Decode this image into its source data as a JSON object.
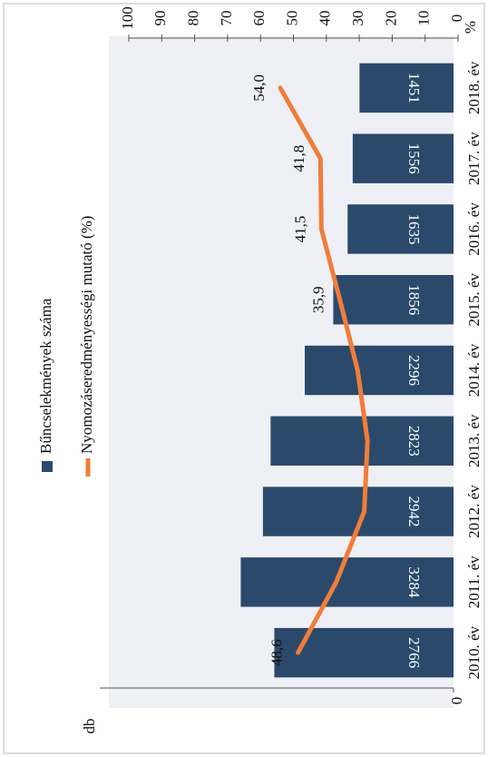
{
  "chart_data": {
    "type": "bar",
    "categories": [
      "2010. év",
      "2011. év",
      "2012. év",
      "2013. év",
      "2014. év",
      "2015. év",
      "2016. év",
      "2017. év",
      "2018. év"
    ],
    "series": [
      {
        "name": "Bűncselekmények száma",
        "type": "bar",
        "color": "#2b4a6b",
        "values": [
          2766,
          3284,
          2942,
          2823,
          2296,
          1856,
          1635,
          1556,
          1451
        ]
      },
      {
        "name": "Nyomozáseredményességi mutató (%)",
        "type": "line",
        "axis": "y2",
        "color": "#f07d3a",
        "values": [
          48.6,
          37,
          28.5,
          27.5,
          30.5,
          35.9,
          41.5,
          41.8,
          54.0
        ],
        "value_labels": [
          "48,6",
          null,
          null,
          null,
          null,
          "35,9",
          "41,5",
          "41,8",
          "54,0"
        ]
      }
    ],
    "ylabel": "db",
    "ylim": [
      0,
      5600
    ],
    "yticks": [
      0
    ],
    "y2label": "%",
    "y2lim": [
      0,
      100
    ],
    "y2ticks": [
      0,
      10,
      20,
      30,
      40,
      50,
      60,
      70,
      80,
      90,
      100
    ]
  }
}
